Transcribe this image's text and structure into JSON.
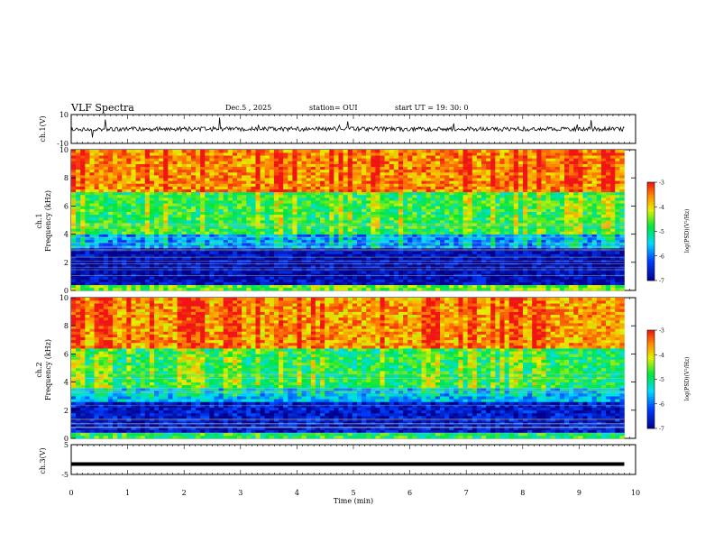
{
  "header": {
    "title": "VLF Spectra",
    "date": "Dec.5 , 2025",
    "station": "station= OUI",
    "start": "start UT =  19: 30: 0"
  },
  "chart_data": [
    {
      "type": "line",
      "panel": "ch1-waveform",
      "ylabel": "ch.1(V)",
      "ylim": [
        -10,
        10
      ],
      "y_ticks": [
        "10",
        "-10"
      ],
      "description_level": 0,
      "x": [
        0,
        9.8
      ],
      "note_values": "noisy waveform around 0 V with spikes"
    },
    {
      "type": "heatmap",
      "panel": "ch1-spectrogram",
      "ylabel": "ch.1\nFrequency (kHz)",
      "ylabel_line1": "ch.1",
      "ylabel_line2": "Frequency (kHz)",
      "ylim": [
        0,
        10
      ],
      "y_ticks": [
        "0",
        "2",
        "4",
        "6",
        "8",
        "10"
      ],
      "xlim": [
        0,
        9.8
      ],
      "colorbar": {
        "label": "log(PSD)(V²/Hz)",
        "range": [
          -7,
          -3
        ],
        "ticks": [
          "-3",
          "-4",
          "-5",
          "-6",
          "-7"
        ]
      },
      "bands_khz": [
        {
          "from": 0,
          "to": 0.4,
          "level": -4.5
        },
        {
          "from": 0.4,
          "to": 3.0,
          "level": -6.8
        },
        {
          "from": 3.0,
          "to": 4.0,
          "level": -5.8
        },
        {
          "from": 4.0,
          "to": 7.0,
          "level": -4.8
        },
        {
          "from": 7.0,
          "to": 10,
          "level": -3.6
        }
      ]
    },
    {
      "type": "heatmap",
      "panel": "ch2-spectrogram",
      "ylabel_line1": "ch.2",
      "ylabel_line2": "Frequency (kHz)",
      "ylim": [
        0,
        10
      ],
      "y_ticks": [
        "0",
        "2",
        "4",
        "6",
        "8",
        "10"
      ],
      "xlim": [
        0,
        9.8
      ],
      "colorbar": {
        "label": "log(PSD)(V²/Hz)",
        "range": [
          -7,
          -3
        ],
        "ticks": [
          "-3",
          "-4",
          "-5",
          "-6",
          "-7"
        ]
      },
      "bands_khz": [
        {
          "from": 0,
          "to": 0.5,
          "level": -4.8
        },
        {
          "from": 0.5,
          "to": 2.6,
          "level": -6.6
        },
        {
          "from": 2.6,
          "to": 3.6,
          "level": -5.6
        },
        {
          "from": 3.6,
          "to": 6.5,
          "level": -4.9
        },
        {
          "from": 6.5,
          "to": 10,
          "level": -3.7
        }
      ]
    },
    {
      "type": "line",
      "panel": "ch3-waveform",
      "ylabel": "ch.3(V)",
      "ylim": [
        -5,
        5
      ],
      "y_ticks": [
        "5",
        "-5"
      ],
      "x": [
        0,
        9.8
      ],
      "y": [
        -1.5,
        -1.5
      ]
    }
  ],
  "xaxis": {
    "label": "Time (min)",
    "ticks": [
      "0",
      "1",
      "2",
      "3",
      "4",
      "5",
      "6",
      "7",
      "8",
      "9",
      "10"
    ],
    "xlim": [
      0,
      10
    ]
  }
}
